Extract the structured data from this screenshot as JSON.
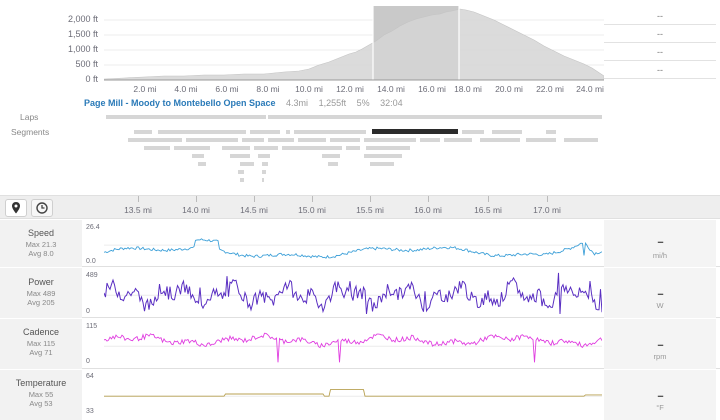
{
  "elevation": {
    "y_labels": [
      "2,000 ft",
      "1,500 ft",
      "1,000 ft",
      "500 ft",
      "0 ft"
    ],
    "x_labels": [
      "2.0 mi",
      "4.0 mi",
      "6.0 mi",
      "8.0 mi",
      "10.0 mi",
      "12.0 mi",
      "14.0 mi",
      "16.0 mi",
      "18.0 mi",
      "20.0 mi",
      "22.0 mi",
      "24.0 mi"
    ],
    "right_values": [
      "--",
      "--",
      "--",
      "--"
    ],
    "selection_start_mi": 13.4,
    "selection_end_mi": 17.5,
    "total_mi": 24.4
  },
  "segment": {
    "name": "Page Mill - Moody to Montebello Open Space",
    "distance": "4.3mi",
    "elevation": "1,255ft",
    "grade": "5%",
    "time": "32:04"
  },
  "rows": {
    "laps_label": "Laps",
    "segments_label": "Segments"
  },
  "toolbar": {
    "distance_icon": "map-marker-icon",
    "time_icon": "clock-icon",
    "ticks": [
      "13.5 mi",
      "14.0 mi",
      "14.5 mi",
      "15.0 mi",
      "15.5 mi",
      "16.0 mi",
      "16.5 mi",
      "17.0 mi"
    ]
  },
  "metrics": [
    {
      "name": "Speed",
      "max": "Max 21.3",
      "avg": "Avg 8.0",
      "scale_top": "26.4",
      "scale_bottom": "0.0",
      "value": "--",
      "unit": "mi/h",
      "color": "#3ea0d8"
    },
    {
      "name": "Power",
      "max": "Max 489",
      "avg": "Avg 205",
      "scale_top": "489",
      "scale_bottom": "0",
      "value": "--",
      "unit": "W",
      "color": "#5a2fc2"
    },
    {
      "name": "Cadence",
      "max": "Max 115",
      "avg": "Avg 71",
      "scale_top": "115",
      "scale_bottom": "0",
      "value": "--",
      "unit": "rpm",
      "color": "#e03ee0"
    },
    {
      "name": "Temperature",
      "max": "Max 55",
      "avg": "Avg 53",
      "scale_top": "64",
      "scale_bottom": "33",
      "value": "--",
      "unit": "°F",
      "color": "#b8a050"
    }
  ],
  "colors": {
    "elevation_fill": "#d9d9d9",
    "selection_fill": "#c6c6c6",
    "segment_title": "#2a7ab8",
    "selected_segment": "#2b2b2b"
  }
}
